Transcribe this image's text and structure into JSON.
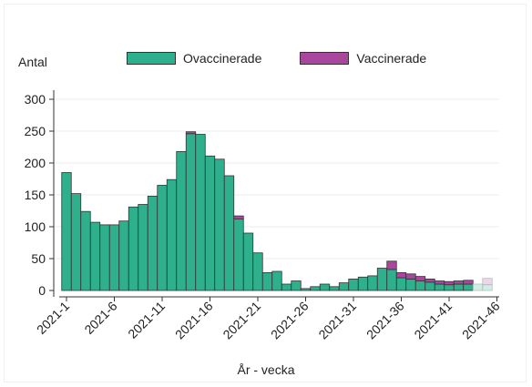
{
  "chart_data": {
    "type": "bar",
    "stacked": true,
    "ylabel": "Antal",
    "xlabel": "År - vecka",
    "ylim": [
      0,
      310
    ],
    "yticks": [
      0,
      50,
      100,
      150,
      200,
      250,
      300
    ],
    "xtick_labels": [
      "2021-1",
      "2021-6",
      "2021-11",
      "2021-16",
      "2021-21",
      "2021-26",
      "2021-31",
      "2021-36",
      "2021-41",
      "2021-46"
    ],
    "categories": [
      "2021-1",
      "2021-2",
      "2021-3",
      "2021-4",
      "2021-5",
      "2021-6",
      "2021-7",
      "2021-8",
      "2021-9",
      "2021-10",
      "2021-11",
      "2021-12",
      "2021-13",
      "2021-14",
      "2021-15",
      "2021-16",
      "2021-17",
      "2021-18",
      "2021-19",
      "2021-20",
      "2021-21",
      "2021-22",
      "2021-23",
      "2021-24",
      "2021-25",
      "2021-26",
      "2021-27",
      "2021-28",
      "2021-29",
      "2021-30",
      "2021-31",
      "2021-32",
      "2021-33",
      "2021-34",
      "2021-35",
      "2021-36",
      "2021-37",
      "2021-38",
      "2021-39",
      "2021-40",
      "2021-41",
      "2021-42",
      "2021-43",
      "2021-44",
      "2021-45"
    ],
    "series": [
      {
        "name": "Ovaccinerade",
        "color": "#2EB08C",
        "values": [
          185,
          152,
          124,
          107,
          103,
          103,
          109,
          131,
          135,
          148,
          165,
          174,
          218,
          246,
          245,
          211,
          206,
          180,
          112,
          90,
          59,
          28,
          30,
          10,
          15,
          3,
          6,
          10,
          6,
          12,
          18,
          21,
          23,
          35,
          33,
          20,
          18,
          15,
          13,
          10,
          9,
          10,
          10,
          10,
          9
        ]
      },
      {
        "name": "Vaccinerade",
        "color": "#A8479D",
        "values": [
          0,
          0,
          0,
          0,
          0,
          0,
          0,
          0,
          0,
          0,
          0,
          0,
          0,
          3,
          0,
          0,
          0,
          0,
          5,
          0,
          0,
          0,
          0,
          0,
          0,
          0,
          0,
          0,
          0,
          0,
          0,
          0,
          0,
          0,
          13,
          8,
          8,
          7,
          5,
          5,
          5,
          5,
          6,
          0,
          10
        ]
      }
    ],
    "faded_from_index": 43,
    "grid": true,
    "legend": "top"
  }
}
